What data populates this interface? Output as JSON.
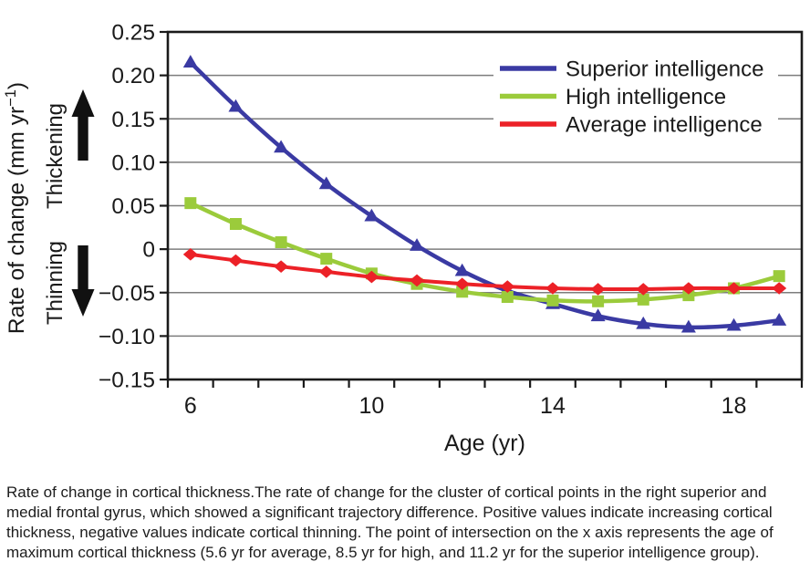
{
  "caption": {
    "text": "Rate of change in cortical thickness.The rate of change for the cluster of cortical points in the right superior and medial frontal gyrus, which showed a significant trajectory difference. Positive values indicate increasing cortical thickness, negative values indicate cortical thinning. The point of intersection on the x axis represents the age of maximum cortical thickness (5.6 yr for average, 8.5 yr for high, and 11.2 yr for the superior intelligence group)."
  },
  "chart_data": {
    "type": "line",
    "title": "",
    "xlabel": "Age (yr)",
    "ylabel": "Rate of change (mm yr−1)",
    "ylabel_parts": {
      "main": "Rate of change (mm yr",
      "sup": "−1",
      "close": ")"
    },
    "direction_labels": [
      {
        "label": "Thickening",
        "arrow": "up"
      },
      {
        "label": "Thinning",
        "arrow": "down"
      }
    ],
    "x": [
      6,
      7,
      8,
      9,
      10,
      11,
      12,
      13,
      14,
      15,
      16,
      17,
      18,
      19
    ],
    "xlim": [
      5.5,
      19.5
    ],
    "ylim": [
      -0.15,
      0.25
    ],
    "grid": true,
    "legend_position": "top-right",
    "xticks": {
      "minor_start": 5.5,
      "minor_end": 19.5,
      "minor_step": 1,
      "labeled": [
        {
          "label": "6",
          "value": 6
        },
        {
          "label": "10",
          "value": 10
        },
        {
          "label": "14",
          "value": 14
        },
        {
          "label": "18",
          "value": 18
        }
      ]
    },
    "yticks": [
      {
        "label": "0.25",
        "value": 0.25,
        "grid": false
      },
      {
        "label": "0.20",
        "value": 0.2,
        "grid": true
      },
      {
        "label": "0.15",
        "value": 0.15,
        "grid": true
      },
      {
        "label": "0.10",
        "value": 0.1,
        "grid": true
      },
      {
        "label": "0.05",
        "value": 0.05,
        "grid": true
      },
      {
        "label": "0",
        "value": 0,
        "grid": true
      },
      {
        "label": "−0.05",
        "value": -0.05,
        "grid": true
      },
      {
        "label": "−0.10",
        "value": -0.1,
        "grid": true
      },
      {
        "label": "−0.15",
        "value": -0.15,
        "grid": false
      }
    ],
    "series": [
      {
        "name": "Superior intelligence",
        "color": "#3a3aa3",
        "marker": "triangle",
        "line_width": 4.5,
        "values": [
          0.215,
          0.164,
          0.117,
          0.075,
          0.038,
          0.004,
          -0.025,
          -0.048,
          -0.063,
          -0.077,
          -0.086,
          -0.09,
          -0.088,
          -0.082
        ]
      },
      {
        "name": "High intelligence",
        "color": "#9bcb3b",
        "marker": "square",
        "line_width": 4.5,
        "values": [
          0.053,
          0.029,
          0.008,
          -0.011,
          -0.028,
          -0.04,
          -0.049,
          -0.055,
          -0.059,
          -0.06,
          -0.058,
          -0.053,
          -0.045,
          -0.031
        ]
      },
      {
        "name": "Average intelligence",
        "color": "#ec2127",
        "marker": "diamond",
        "line_width": 4,
        "values": [
          -0.006,
          -0.013,
          -0.02,
          -0.026,
          -0.032,
          -0.036,
          -0.04,
          -0.043,
          -0.045,
          -0.046,
          -0.046,
          -0.045,
          -0.045,
          -0.045
        ]
      }
    ],
    "colors": {
      "grid": "#7d7d7d",
      "frame": "#1a1a1a",
      "text": "#1a1a1a",
      "arrow": "#111111"
    }
  }
}
